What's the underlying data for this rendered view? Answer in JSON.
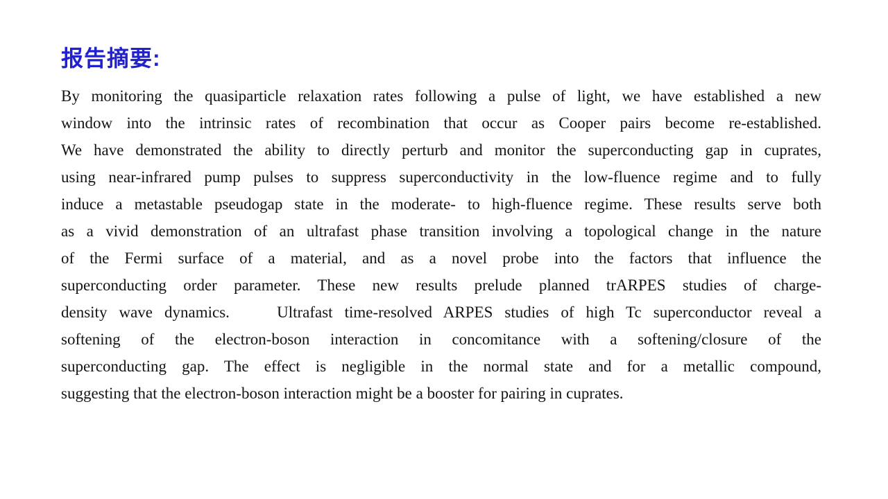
{
  "slide": {
    "title": "报告摘要:",
    "title_color": "#2222cc",
    "background_color": "#ffffff"
  },
  "abstract": {
    "text_color": "#141414",
    "lines": [
      "By monitoring the quasiparticle relaxation rates following a pulse of light, we have established a new",
      "window into the intrinsic rates of recombination that occur as Cooper pairs become re-established.",
      "We have demonstrated the ability to directly perturb and monitor the superconducting gap in cuprates,",
      "using near-infrared pump pulses to suppress superconductivity in the low-fluence regime and to fully",
      "induce a metastable pseudogap state in the moderate- to high-fluence regime. These results serve both",
      "as a vivid demonstration of an ultrafast phase transition involving a topological change in the nature",
      "of the Fermi surface of a material, and as a novel probe into the factors that influence the",
      "superconducting order parameter. These new results prelude planned trARPES studies of charge-",
      "density wave dynamics.    Ultrafast time-resolved ARPES studies of high Tc superconductor reveal a",
      "softening of the electron-boson interaction in concomitance with a softening/closure of the",
      "superconducting gap. The effect is negligible in the normal state and for a metallic compound,",
      "suggesting that the electron-boson interaction might be a booster for pairing in cuprates."
    ]
  }
}
